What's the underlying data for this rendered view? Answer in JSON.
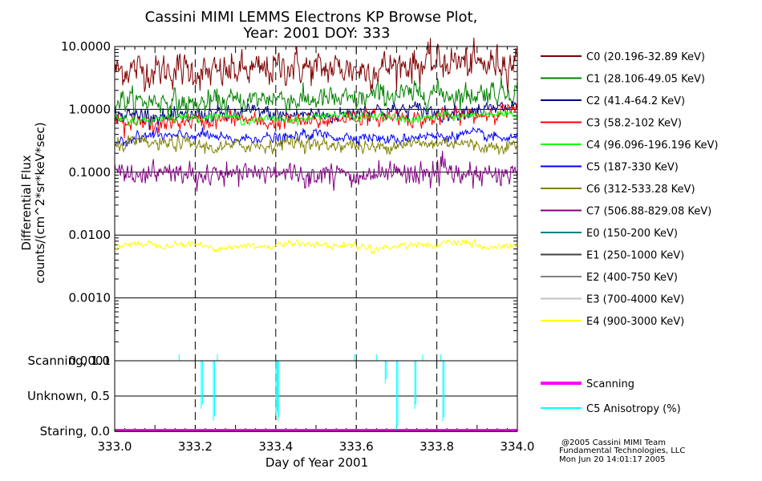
{
  "title_line1": "Cassini MIMI LEMMS Electrons KP Browse Plot,",
  "title_line2": "Year: 2001 DOY: 333",
  "credits": [
    "@2005 Cassini MIMI Team",
    "Fundamental Technologies, LLC",
    "Mon Jun 20 14:01:17 2005"
  ],
  "chart_data": [
    {
      "type": "line",
      "xlabel": "",
      "ylabel_lines": [
        "Differential Flux",
        "counts/(cm^2*sr*keV*sec)"
      ],
      "yscale": "log",
      "ylim": [
        0.0001,
        10.0
      ],
      "xlim": [
        333.0,
        334.0
      ],
      "y_ticks": [
        "10.0000",
        "1.0000",
        "0.1000",
        "0.0100",
        "0.0010",
        "0.0001"
      ],
      "y_tick_values": [
        10,
        1,
        0.1,
        0.01,
        0.001,
        0.0001
      ],
      "grid": "horizontal lines at decades; dashed vertical lines every 0.2 day",
      "legend_position": "right",
      "series": [
        {
          "name": "C0 (20.196-32.89 KeV)",
          "color": "#800000",
          "level": 4.0,
          "trend": 0.35,
          "noise": 0.13
        },
        {
          "name": "C1 (28.106-49.05 KeV)",
          "color": "#008000",
          "level": 1.3,
          "trend": 0.4,
          "noise": 0.09
        },
        {
          "name": "C2 (41.4-64.2 KeV)",
          "color": "#000080",
          "level": 0.8,
          "trend": 0.25,
          "noise": 0.06
        },
        {
          "name": "C3 (58.2-102 KeV)",
          "color": "#ff0000",
          "level": 0.62,
          "trend": 0.3,
          "noise": 0.06
        },
        {
          "name": "C4 (96.096-196.196 KeV)",
          "color": "#00ff00",
          "level": 0.72,
          "trend": 0.08,
          "noise": 0.03
        },
        {
          "name": "C5 (187-330 KeV)",
          "color": "#0000ff",
          "level": 0.36,
          "trend": 0.02,
          "noise": 0.04
        },
        {
          "name": "C6 (312-533.28 KeV)",
          "color": "#808000",
          "level": 0.27,
          "trend": 0.02,
          "noise": 0.05
        },
        {
          "name": "C7 (506.88-829.08 KeV)",
          "color": "#800080",
          "level": 0.095,
          "trend": 0.0,
          "noise": 0.08
        },
        {
          "name": "E0 (150-200 KeV)",
          "color": "#008080",
          "level": null
        },
        {
          "name": "E1 (250-1000 KeV)",
          "color": "#404040",
          "level": null
        },
        {
          "name": "E2 (400-750 KeV)",
          "color": "#808080",
          "level": null
        },
        {
          "name": "E3 (700-4000 KeV)",
          "color": "#c0c0c0",
          "level": null
        },
        {
          "name": "E4 (900-3000 KeV)",
          "color": "#ffff00",
          "level": 0.0068,
          "trend": 0.0,
          "noise": 0.025
        }
      ]
    },
    {
      "type": "line",
      "xlabel": "Day of Year 2001",
      "xlim": [
        333.0,
        334.0
      ],
      "ylim": [
        0.0,
        1.0
      ],
      "x_ticks": [
        "333.0",
        "333.2",
        "333.4",
        "333.6",
        "333.8",
        "334.0"
      ],
      "x_tick_values": [
        333.0,
        333.2,
        333.4,
        333.6,
        333.8,
        334.0
      ],
      "y_ticks": [
        "Scanning, 1.0",
        "Unknown, 0.5",
        "Staring, 0.0"
      ],
      "y_tick_values": [
        1.0,
        0.5,
        0.0
      ],
      "legend_position": "right",
      "series": [
        {
          "name": "Scanning",
          "color": "#ff00ff",
          "constant": 0.0
        },
        {
          "name": "C5 Anisotropy (%)",
          "color": "#00ffff",
          "baseline": 1.0,
          "dips": [
            {
              "x": 333.215,
              "y": 0.32
            },
            {
              "x": 333.245,
              "y": 0.15
            },
            {
              "x": 333.4,
              "y": 0.22
            },
            {
              "x": 333.405,
              "y": 0.14
            },
            {
              "x": 333.672,
              "y": 0.68
            },
            {
              "x": 333.7,
              "y": 0.02
            },
            {
              "x": 333.745,
              "y": 0.32
            },
            {
              "x": 333.815,
              "y": 0.14
            }
          ],
          "spikes_up": [
            333.16,
            333.255,
            333.595,
            333.65,
            333.765,
            333.81
          ]
        }
      ]
    }
  ]
}
